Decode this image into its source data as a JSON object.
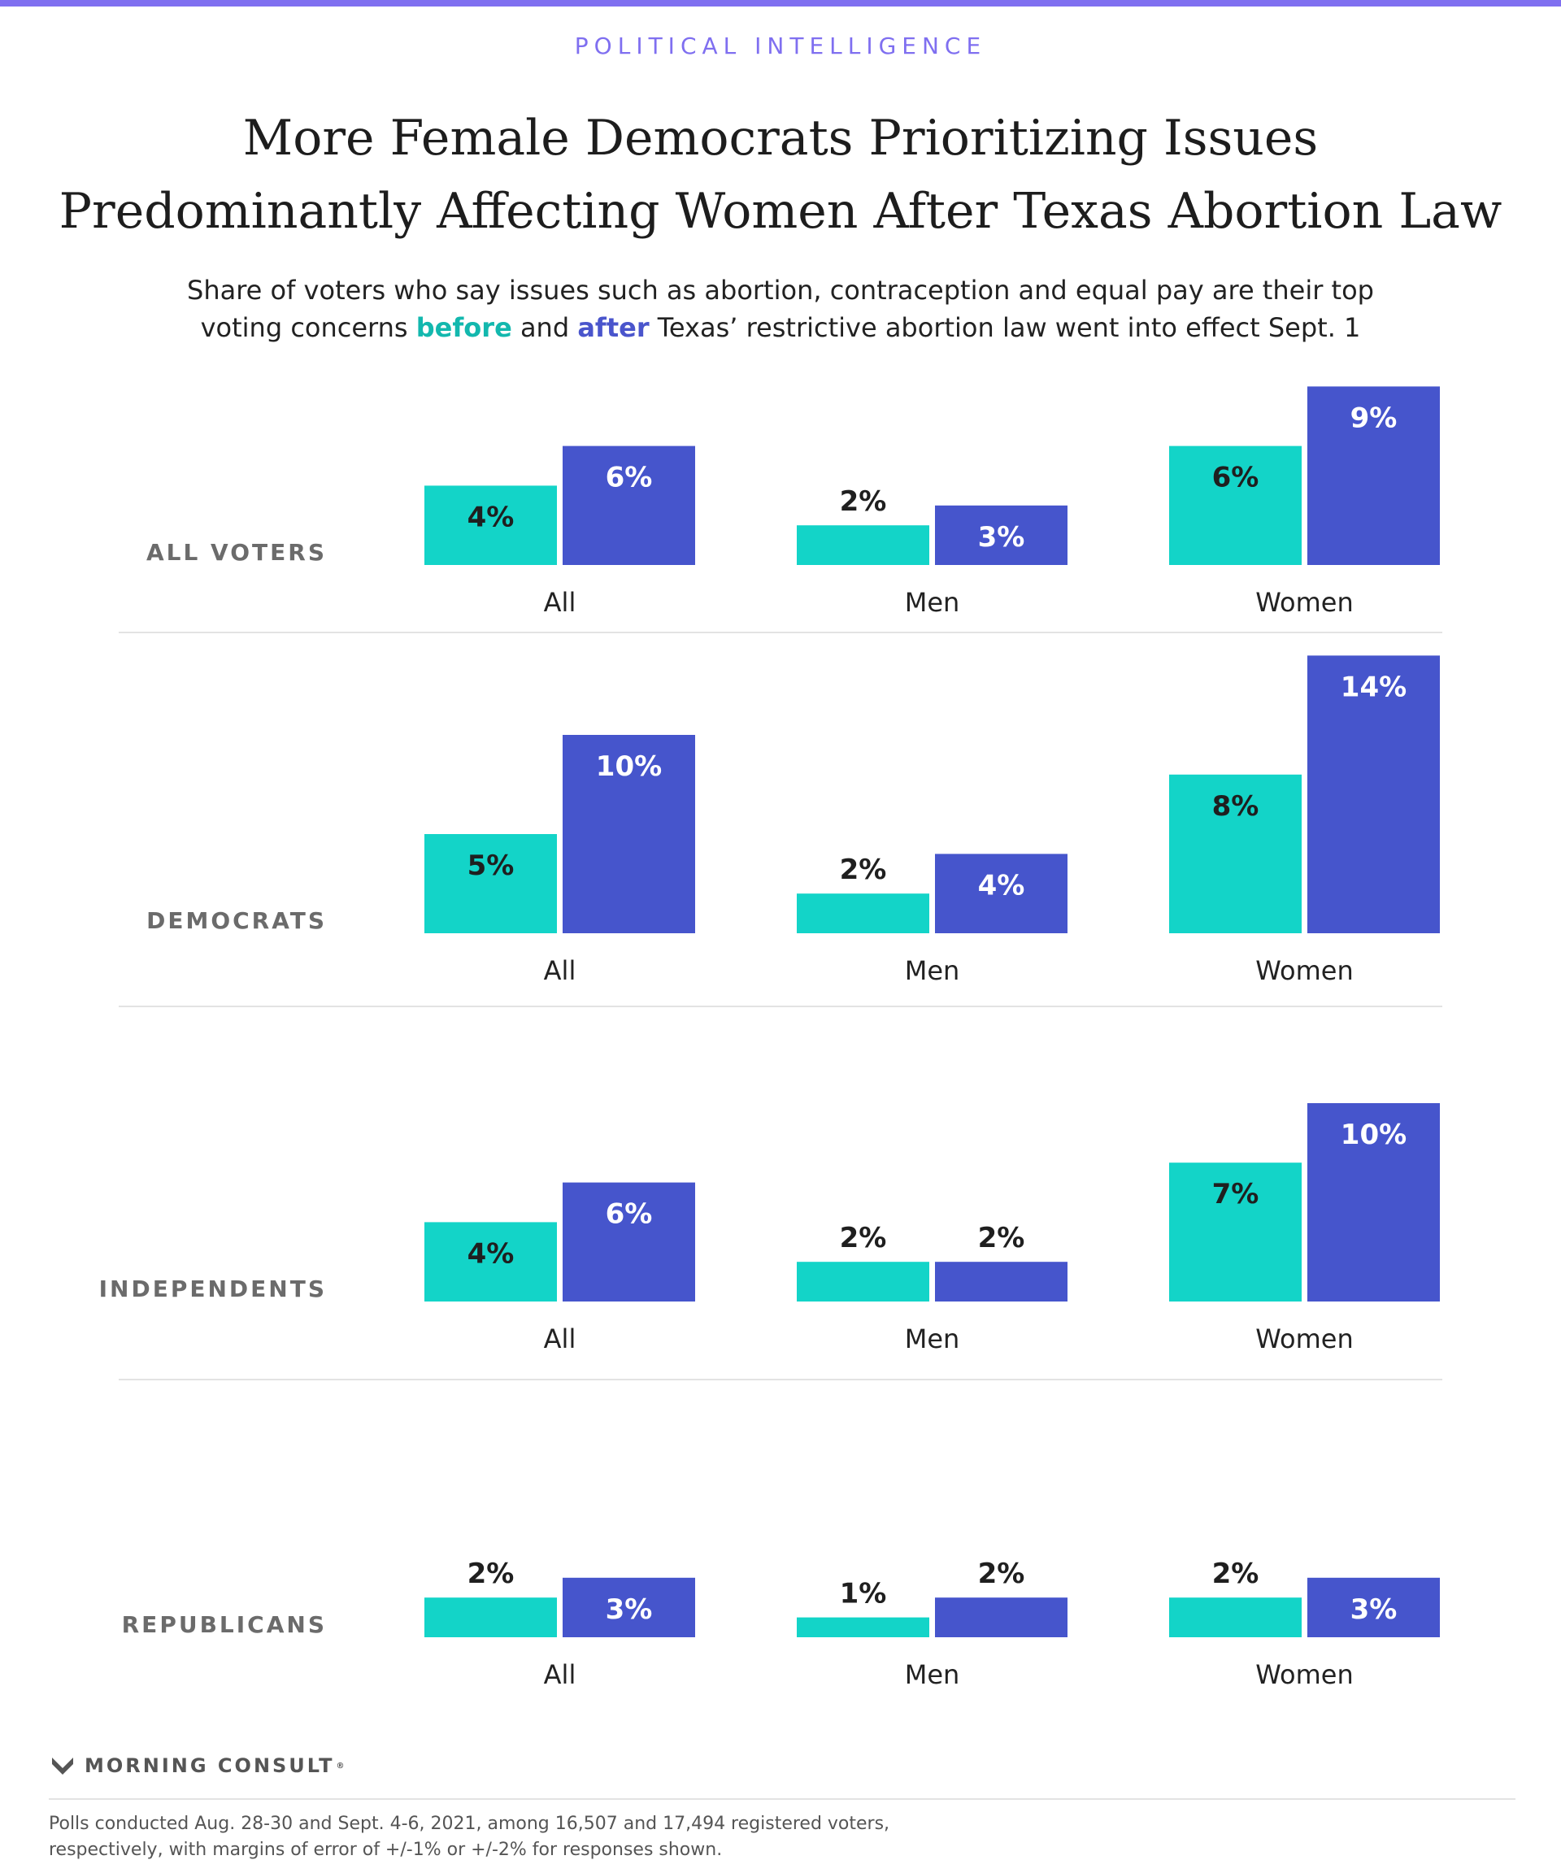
{
  "kicker": "POLITICAL INTELLIGENCE",
  "title": {
    "line1": "More Female Democrats Prioritizing Issues",
    "line2": "Predominantly Affecting Women After Texas Abortion Law"
  },
  "subtitle": {
    "line1": "Share of voters who say issues such as abortion, contraception and equal pay are their top",
    "line2_pre": "voting concerns",
    "before_word": "before",
    "line2_mid": "and",
    "after_word": "after",
    "line2_post": "Texas’ restrictive abortion law went into effect Sept. 1"
  },
  "colors": {
    "before": "#13d4c8",
    "after": "#4655cc",
    "accent": "#7f6ff0"
  },
  "chart_data": {
    "type": "bar",
    "value_unit": "%",
    "series": [
      {
        "name": "before"
      },
      {
        "name": "after"
      }
    ],
    "panels": [
      {
        "label": "ALL VOTERS",
        "groups": [
          {
            "category": "All",
            "before": 4,
            "after": 6
          },
          {
            "category": "Men",
            "before": 2,
            "after": 3
          },
          {
            "category": "Women",
            "before": 6,
            "after": 9
          }
        ]
      },
      {
        "label": "DEMOCRATS",
        "groups": [
          {
            "category": "All",
            "before": 5,
            "after": 10
          },
          {
            "category": "Men",
            "before": 2,
            "after": 4
          },
          {
            "category": "Women",
            "before": 8,
            "after": 14
          }
        ]
      },
      {
        "label": "INDEPENDENTS",
        "groups": [
          {
            "category": "All",
            "before": 4,
            "after": 6
          },
          {
            "category": "Men",
            "before": 2,
            "after": 2
          },
          {
            "category": "Women",
            "before": 7,
            "after": 10
          }
        ]
      },
      {
        "label": "REPUBLICANS",
        "groups": [
          {
            "category": "All",
            "before": 2,
            "after": 3
          },
          {
            "category": "Men",
            "before": 1,
            "after": 2
          },
          {
            "category": "Women",
            "before": 2,
            "after": 3
          }
        ]
      }
    ]
  },
  "brand": "MORNING CONSULT",
  "footnote": {
    "line1": "Polls conducted Aug. 28-30 and Sept. 4-6, 2021, among 16,507 and 17,494 registered voters,",
    "line2": "respectively, with margins of error of +/-1% or +/-2% for responses shown."
  }
}
